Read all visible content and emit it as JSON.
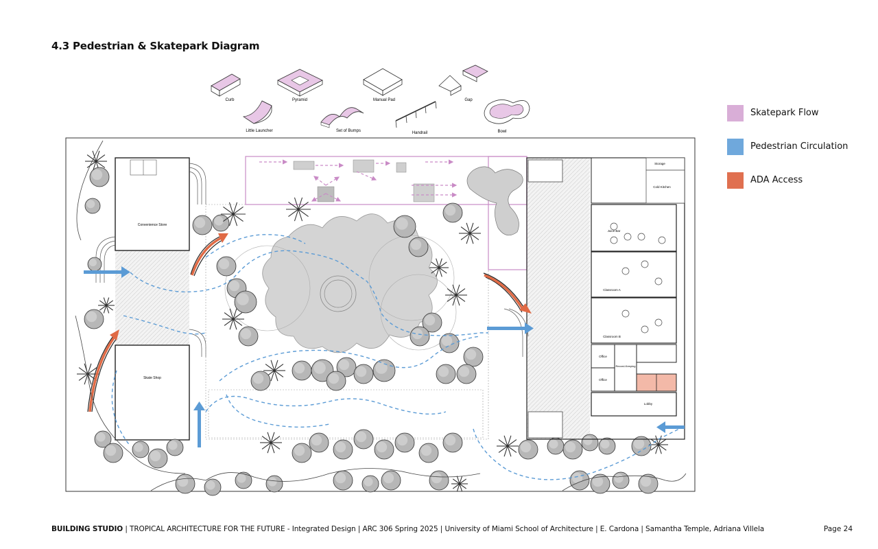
{
  "title": "4.3 Pedestrian & Skatepark Diagram",
  "obstacles": [
    {
      "id": "curb",
      "label": "Curb"
    },
    {
      "id": "pyramid",
      "label": "Pyramid"
    },
    {
      "id": "manual-pad",
      "label": "Manual Pad"
    },
    {
      "id": "gap",
      "label": "Gap"
    },
    {
      "id": "little-launcher",
      "label": "Little Launcher"
    },
    {
      "id": "set-of-bumps",
      "label": "Set of Bumps"
    },
    {
      "id": "handrail",
      "label": "Handrail"
    },
    {
      "id": "bowl",
      "label": "Bowl"
    }
  ],
  "legend": [
    {
      "label": "Skatepark Flow",
      "color": "#d9aed7"
    },
    {
      "label": "Pedestrian Circulation",
      "color": "#6fa8dc"
    },
    {
      "label": "ADA Access",
      "color": "#e07050"
    }
  ],
  "rooms": {
    "convenience_store": "Convenience Store",
    "skate_shop": "Skate Shop",
    "juice_bar": "Juice Bar",
    "classroom_a": "Classroom A",
    "classroom_b": "Classroom B",
    "office_1": "Office",
    "office_2": "Office",
    "record_keeping": "Record-Keeping",
    "lobby": "Lobby",
    "storage": "Storage",
    "cold_kitchen": "Cold Kitchen"
  },
  "colors": {
    "skate": "#c98bc6",
    "pedestrian": "#5b9bd5",
    "ada": "#e06a45",
    "canopy": "#d4d4d4"
  },
  "footer": {
    "studio": "BUILDING STUDIO",
    "text": " | TROPICAL ARCHITECTURE FOR THE FUTURE - Integrated Design | ARC 306 Spring 2025 | University of Miami School of Architecture | E. Cardona | Samantha Temple, Adriana Villela",
    "page": "Page 24"
  }
}
